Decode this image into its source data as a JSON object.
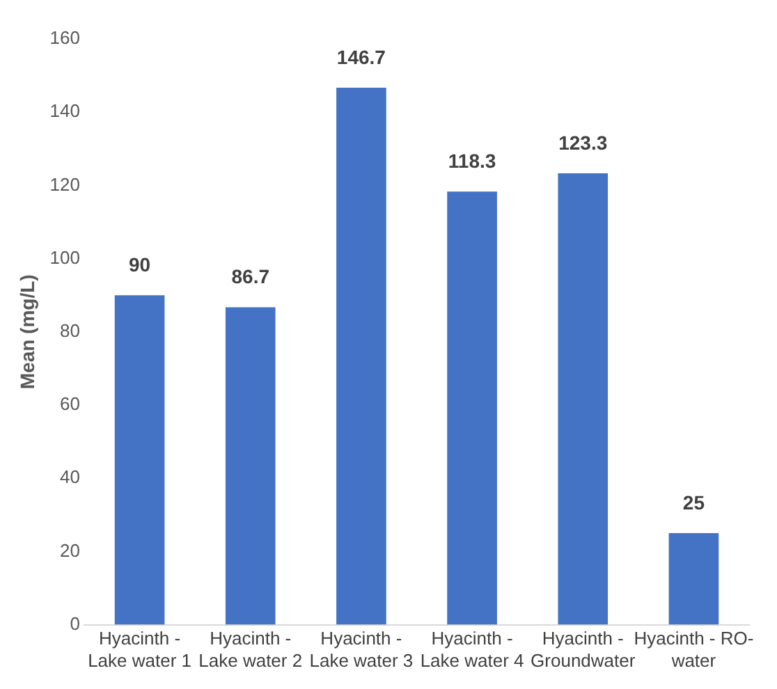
{
  "chart_data": {
    "type": "bar",
    "ylabel": "Mean (mg/L)",
    "categories": [
      "Hyacinth - Lake water 1",
      "Hyacinth - Lake water 2",
      "Hyacinth - Lake water 3",
      "Hyacinth - Lake water 4",
      "Hyacinth - Groundwater",
      "Hyacinth - RO-water"
    ],
    "values": [
      90,
      86.7,
      146.7,
      118.3,
      123.3,
      25
    ],
    "color": "#4472c4",
    "ylim": [
      0,
      160
    ],
    "yticks": [
      0,
      20,
      40,
      60,
      80,
      100,
      120,
      140,
      160
    ],
    "grid": false,
    "legend": false,
    "data_labels": true
  }
}
